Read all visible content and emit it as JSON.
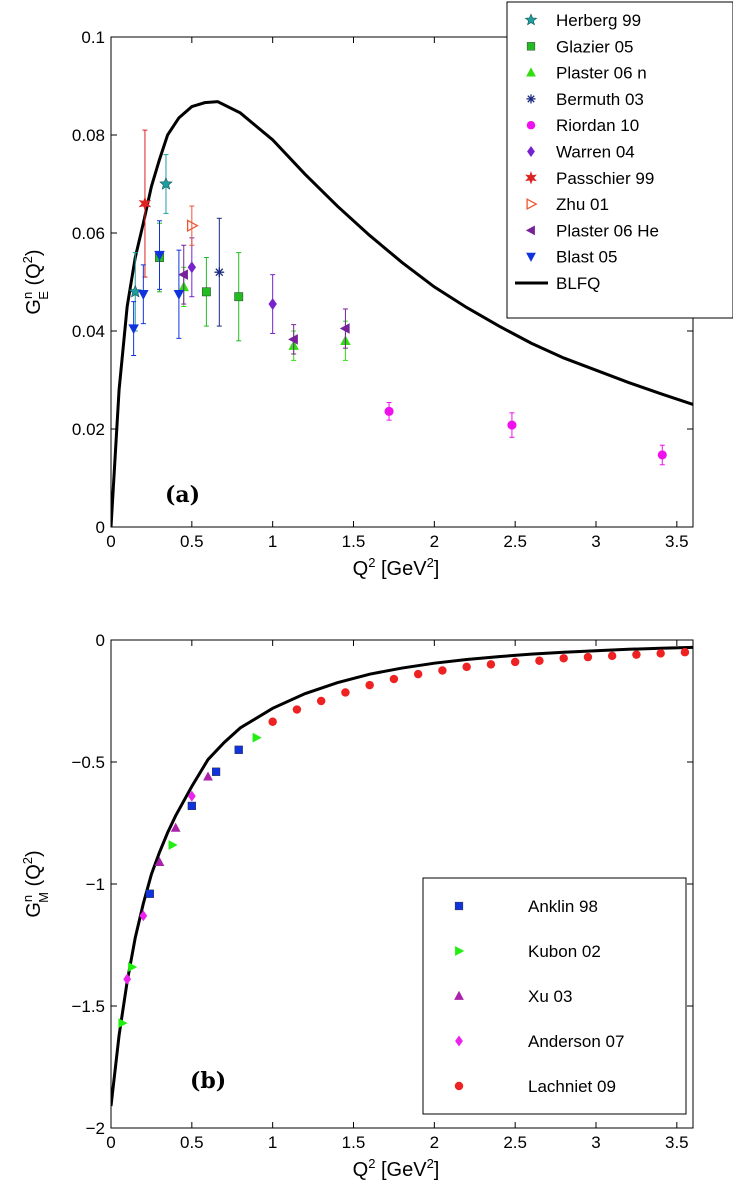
{
  "chart_data": [
    {
      "type": "scatter",
      "panel_label": "(a)",
      "xlabel": "Q² [GeV²]",
      "ylabel": "G^n_E (Q²)",
      "xlim": [
        0,
        3.6
      ],
      "ylim": [
        0,
        0.1
      ],
      "xticks": [
        "0",
        "0.5",
        "1",
        "1.5",
        "2",
        "2.5",
        "3",
        "3.5"
      ],
      "yticks": [
        "0",
        "0.02",
        "0.04",
        "0.06",
        "0.08",
        "0.1"
      ],
      "legend_position": "top-right",
      "series": [
        {
          "name": "Herberg 99",
          "marker": "star",
          "color": "#1f9e9e",
          "points": [
            [
              0.15,
              0.048,
              0.008
            ],
            [
              0.34,
              0.07,
              0.006
            ]
          ]
        },
        {
          "name": "Glazier 05",
          "marker": "square",
          "color": "#22bb22",
          "points": [
            [
              0.3,
              0.055,
              0.007
            ],
            [
              0.59,
              0.048,
              0.007
            ],
            [
              0.79,
              0.047,
              0.009
            ]
          ]
        },
        {
          "name": "Plaster 06 n",
          "marker": "triangle-up",
          "color": "#33dd11",
          "points": [
            [
              0.45,
              0.049,
              0.004
            ],
            [
              1.13,
              0.037,
              0.003
            ],
            [
              1.45,
              0.038,
              0.004
            ]
          ]
        },
        {
          "name": "Bermuth 03",
          "marker": "asterisk",
          "color": "#1a2a80",
          "points": [
            [
              0.67,
              0.052,
              0.011
            ]
          ]
        },
        {
          "name": "Riordan 10",
          "marker": "circle",
          "color": "#ee11ee",
          "points": [
            [
              1.72,
              0.0236,
              0.0018
            ],
            [
              2.48,
              0.0208,
              0.0025
            ],
            [
              3.41,
              0.0147,
              0.002
            ]
          ]
        },
        {
          "name": "Warren 04",
          "marker": "diamond",
          "color": "#7722cc",
          "points": [
            [
              0.5,
              0.053,
              0.006
            ],
            [
              1.0,
              0.0455,
              0.006
            ]
          ]
        },
        {
          "name": "Passchier 99",
          "marker": "star6",
          "color": "#dd2222",
          "points": [
            [
              0.21,
              0.066,
              0.015
            ]
          ]
        },
        {
          "name": "Zhu 01",
          "marker": "triangle-right-open",
          "color": "#ee5533",
          "points": [
            [
              0.5,
              0.0615,
              0.004
            ]
          ]
        },
        {
          "name": "Plaster 06 He",
          "marker": "triangle-left",
          "color": "#772299",
          "points": [
            [
              0.45,
              0.0515,
              0.006
            ],
            [
              1.13,
              0.0383,
              0.003
            ],
            [
              1.45,
              0.0405,
              0.004
            ]
          ]
        },
        {
          "name": "Blast 05",
          "marker": "triangle-down",
          "color": "#1133dd",
          "points": [
            [
              0.14,
              0.0405,
              0.0055
            ],
            [
              0.2,
              0.0475,
              0.006
            ],
            [
              0.3,
              0.0555,
              0.007
            ],
            [
              0.42,
              0.0475,
              0.009
            ]
          ]
        }
      ],
      "curve": {
        "name": "BLFQ",
        "color": "#000000",
        "x": [
          0,
          0.05,
          0.1,
          0.15,
          0.2,
          0.25,
          0.3,
          0.35,
          0.42,
          0.5,
          0.58,
          0.66,
          0.8,
          1.0,
          1.2,
          1.4,
          1.6,
          1.8,
          2.0,
          2.2,
          2.4,
          2.6,
          2.8,
          3.0,
          3.2,
          3.4,
          3.6
        ],
        "y": [
          0,
          0.028,
          0.045,
          0.055,
          0.062,
          0.0695,
          0.075,
          0.08,
          0.0835,
          0.0858,
          0.0866,
          0.0868,
          0.0845,
          0.079,
          0.072,
          0.0655,
          0.0595,
          0.054,
          0.049,
          0.0448,
          0.041,
          0.0375,
          0.0345,
          0.032,
          0.0295,
          0.0272,
          0.025
        ]
      }
    },
    {
      "type": "scatter",
      "panel_label": "(b)",
      "xlabel": "Q² [GeV²]",
      "ylabel": "G^n_M (Q²)",
      "xlim": [
        0,
        3.6
      ],
      "ylim": [
        -2,
        0
      ],
      "xticks": [
        "0",
        "0.5",
        "1",
        "1.5",
        "2",
        "2.5",
        "3",
        "3.5"
      ],
      "yticks": [
        "−2",
        "−1.5",
        "−1",
        "−0.5",
        "0"
      ],
      "legend_position": "bottom-right",
      "series": [
        {
          "name": "Anklin 98",
          "marker": "square",
          "color": "#1133dd",
          "points": [
            [
              0.24,
              -1.04,
              0
            ],
            [
              0.5,
              -0.68,
              0
            ],
            [
              0.65,
              -0.54,
              0
            ],
            [
              0.79,
              -0.45,
              0
            ]
          ]
        },
        {
          "name": "Kubon 02",
          "marker": "triangle-right",
          "color": "#22ee11",
          "points": [
            [
              0.07,
              -1.57,
              0
            ],
            [
              0.13,
              -1.34,
              0
            ],
            [
              0.38,
              -0.84,
              0
            ],
            [
              0.9,
              -0.4,
              0
            ]
          ]
        },
        {
          "name": "Xu 03",
          "marker": "triangle-up",
          "color": "#aa22aa",
          "points": [
            [
              0.3,
              -0.91,
              0
            ],
            [
              0.4,
              -0.77,
              0
            ],
            [
              0.6,
              -0.56,
              0
            ]
          ]
        },
        {
          "name": "Anderson 07",
          "marker": "diamond",
          "color": "#ee22ee",
          "points": [
            [
              0.1,
              -1.39,
              0
            ],
            [
              0.2,
              -1.13,
              0
            ],
            [
              0.5,
              -0.64,
              0
            ]
          ]
        },
        {
          "name": "Lachniet 09",
          "marker": "circle",
          "color": "#ee2222",
          "points": [
            [
              1.0,
              -0.335,
              0
            ],
            [
              1.15,
              -0.285,
              0
            ],
            [
              1.3,
              -0.25,
              0
            ],
            [
              1.45,
              -0.215,
              0
            ],
            [
              1.6,
              -0.185,
              0
            ],
            [
              1.75,
              -0.16,
              0
            ],
            [
              1.9,
              -0.14,
              0
            ],
            [
              2.05,
              -0.125,
              0
            ],
            [
              2.2,
              -0.11,
              0
            ],
            [
              2.35,
              -0.1,
              0
            ],
            [
              2.5,
              -0.09,
              0
            ],
            [
              2.65,
              -0.085,
              0
            ],
            [
              2.8,
              -0.075,
              0
            ],
            [
              2.95,
              -0.07,
              0
            ],
            [
              3.1,
              -0.065,
              0
            ],
            [
              3.25,
              -0.06,
              0
            ],
            [
              3.4,
              -0.055,
              0
            ],
            [
              3.55,
              -0.05,
              0
            ]
          ]
        }
      ],
      "curve": {
        "name": "",
        "color": "#000000",
        "x": [
          0,
          0.05,
          0.1,
          0.15,
          0.2,
          0.25,
          0.3,
          0.35,
          0.4,
          0.5,
          0.6,
          0.7,
          0.8,
          1.0,
          1.2,
          1.4,
          1.6,
          1.8,
          2.0,
          2.2,
          2.4,
          2.6,
          2.8,
          3.0,
          3.2,
          3.4,
          3.6
        ],
        "y": [
          -1.91,
          -1.62,
          -1.4,
          -1.22,
          -1.08,
          -0.96,
          -0.87,
          -0.79,
          -0.72,
          -0.6,
          -0.49,
          -0.42,
          -0.36,
          -0.28,
          -0.22,
          -0.175,
          -0.14,
          -0.115,
          -0.095,
          -0.08,
          -0.068,
          -0.058,
          -0.05,
          -0.044,
          -0.038,
          -0.034,
          -0.03
        ]
      }
    }
  ]
}
